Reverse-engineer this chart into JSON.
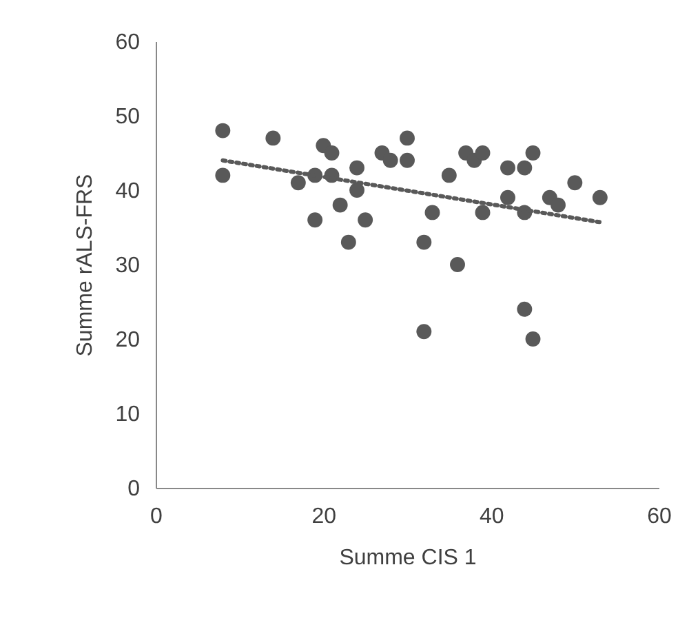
{
  "chart_data": {
    "type": "scatter",
    "xlabel": "Summe CIS 1",
    "ylabel": "Summe rALS-FRS",
    "xlim": [
      0,
      60
    ],
    "ylim": [
      0,
      60
    ],
    "xticks": [
      0,
      20,
      40,
      60
    ],
    "yticks": [
      0,
      10,
      20,
      30,
      40,
      50,
      60
    ],
    "grid": false,
    "marker": "circle",
    "series": [
      {
        "color": "#595959",
        "x": [
          8,
          8,
          14,
          17,
          19,
          19,
          20,
          21,
          21,
          22,
          23,
          24,
          24,
          25,
          27,
          28,
          30,
          30,
          32,
          32,
          33,
          35,
          36,
          37,
          38,
          39,
          39,
          42,
          42,
          44,
          44,
          44,
          45,
          45,
          47,
          48,
          50,
          53
        ],
        "values": [
          48,
          42,
          47,
          41,
          42,
          36,
          46,
          45,
          42,
          38,
          33,
          43,
          40,
          36,
          45,
          44,
          47,
          44,
          33,
          21,
          37,
          42,
          30,
          45,
          44,
          45,
          37,
          43,
          39,
          43,
          37,
          24,
          45,
          20,
          39,
          38,
          41,
          39
        ]
      },
      {
        "type": "line",
        "line_style": "dotted",
        "marker": "none",
        "color": "#595959",
        "x": [
          8,
          53
        ],
        "values": [
          44,
          35.7
        ]
      }
    ]
  }
}
